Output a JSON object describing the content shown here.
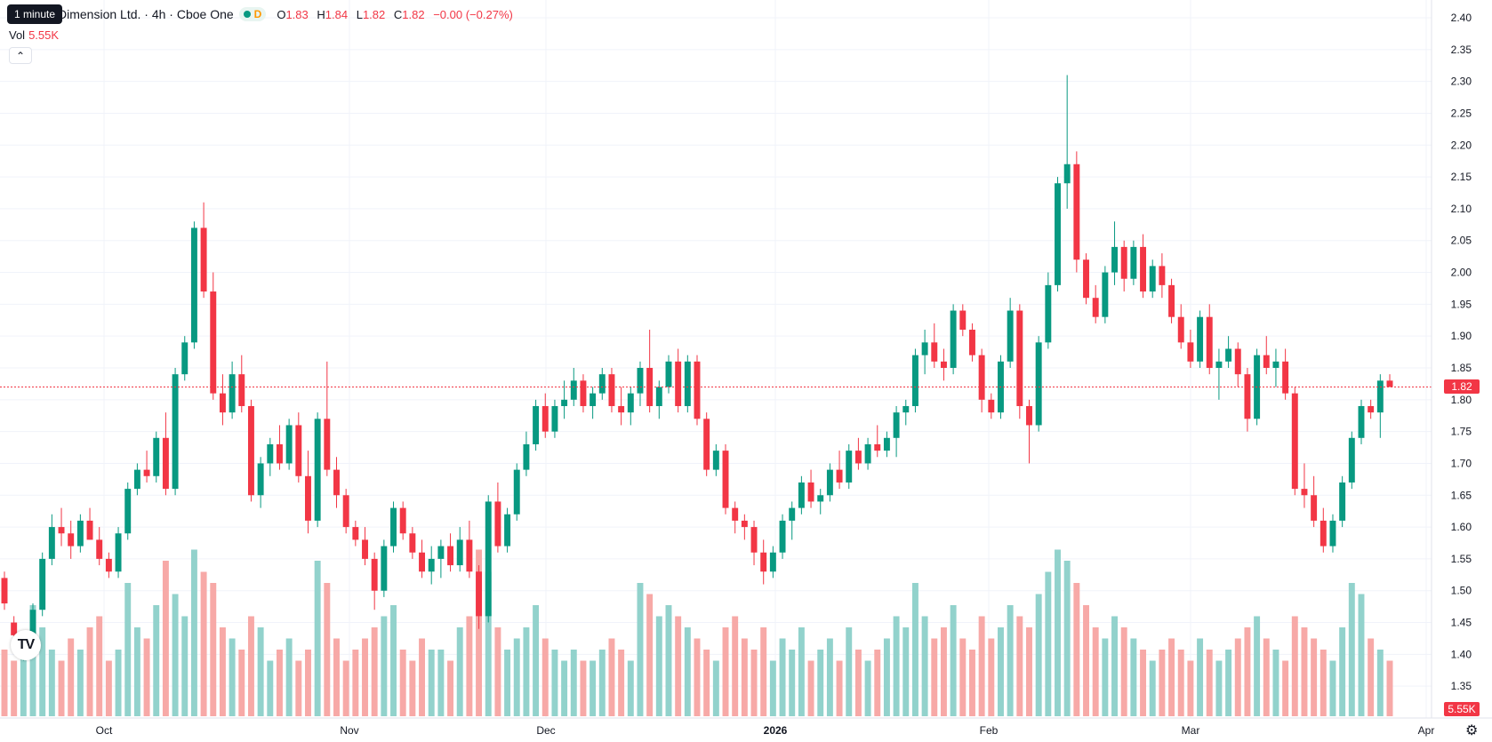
{
  "tooltip": "1 minute",
  "legend": {
    "title": "Dimension Ltd. · 4h · Cboe One",
    "delay_badge": "D",
    "o_label": "O",
    "o_value": "1.83",
    "h_label": "H",
    "h_value": "1.84",
    "l_label": "L",
    "l_value": "1.82",
    "c_label": "C",
    "c_value": "1.82",
    "change": "−0.00 (−0.27%)"
  },
  "volume": {
    "label": "Vol",
    "value": "5.55K"
  },
  "price_tag": "1.82",
  "volume_tag": "5.55K",
  "icons": {
    "collapse": "chevron-up-icon",
    "logo": "tradingview-logo",
    "settings": "gear-icon"
  },
  "colors": {
    "up": "#089981",
    "down": "#f23645",
    "up_volume": "#92d2cc",
    "down_volume": "#f7a9a7",
    "grid": "#f0f3fa"
  },
  "chart_data": {
    "type": "candlestick",
    "price_axis": {
      "min": 1.3,
      "max": 2.4,
      "ticks": [
        "2.40",
        "2.35",
        "2.30",
        "2.25",
        "2.20",
        "2.15",
        "2.10",
        "2.05",
        "2.00",
        "1.95",
        "1.90",
        "1.85",
        "1.80",
        "1.75",
        "1.70",
        "1.65",
        "1.60",
        "1.55",
        "1.50",
        "1.45",
        "1.40",
        "1.35"
      ]
    },
    "time_axis": {
      "labels": [
        "Oct",
        "Nov",
        "Dec",
        "2026",
        "Feb",
        "Mar",
        "Apr"
      ]
    },
    "last_price": 1.82,
    "grid": true,
    "candles": [
      [
        1.52,
        1.53,
        1.47,
        1.48,
        6
      ],
      [
        1.45,
        1.46,
        1.42,
        1.43,
        5
      ],
      [
        1.41,
        1.43,
        1.39,
        1.42,
        7
      ],
      [
        1.42,
        1.48,
        1.4,
        1.47,
        10
      ],
      [
        1.47,
        1.56,
        1.46,
        1.55,
        8
      ],
      [
        1.55,
        1.62,
        1.54,
        1.6,
        6
      ],
      [
        1.6,
        1.63,
        1.57,
        1.59,
        5
      ],
      [
        1.59,
        1.61,
        1.55,
        1.57,
        7
      ],
      [
        1.57,
        1.62,
        1.56,
        1.61,
        6
      ],
      [
        1.61,
        1.63,
        1.58,
        1.58,
        8
      ],
      [
        1.58,
        1.6,
        1.54,
        1.55,
        9
      ],
      [
        1.55,
        1.56,
        1.52,
        1.53,
        5
      ],
      [
        1.53,
        1.6,
        1.52,
        1.59,
        6
      ],
      [
        1.59,
        1.67,
        1.58,
        1.66,
        12
      ],
      [
        1.66,
        1.7,
        1.65,
        1.69,
        8
      ],
      [
        1.69,
        1.72,
        1.67,
        1.68,
        7
      ],
      [
        1.68,
        1.75,
        1.67,
        1.74,
        10
      ],
      [
        1.74,
        1.78,
        1.65,
        1.66,
        14
      ],
      [
        1.66,
        1.85,
        1.65,
        1.84,
        11
      ],
      [
        1.84,
        1.9,
        1.83,
        1.89,
        9
      ],
      [
        1.89,
        2.08,
        1.88,
        2.07,
        15
      ],
      [
        2.07,
        2.11,
        1.96,
        1.97,
        13
      ],
      [
        1.97,
        2.0,
        1.8,
        1.81,
        12
      ],
      [
        1.81,
        1.84,
        1.76,
        1.78,
        8
      ],
      [
        1.78,
        1.86,
        1.77,
        1.84,
        7
      ],
      [
        1.84,
        1.87,
        1.78,
        1.79,
        6
      ],
      [
        1.79,
        1.8,
        1.64,
        1.65,
        9
      ],
      [
        1.65,
        1.71,
        1.63,
        1.7,
        8
      ],
      [
        1.7,
        1.74,
        1.68,
        1.73,
        5
      ],
      [
        1.73,
        1.76,
        1.69,
        1.7,
        6
      ],
      [
        1.7,
        1.77,
        1.69,
        1.76,
        7
      ],
      [
        1.76,
        1.78,
        1.67,
        1.68,
        5
      ],
      [
        1.68,
        1.72,
        1.59,
        1.61,
        6
      ],
      [
        1.61,
        1.78,
        1.6,
        1.77,
        14
      ],
      [
        1.77,
        1.86,
        1.68,
        1.69,
        12
      ],
      [
        1.69,
        1.71,
        1.63,
        1.65,
        7
      ],
      [
        1.65,
        1.66,
        1.59,
        1.6,
        5
      ],
      [
        1.6,
        1.61,
        1.57,
        1.58,
        6
      ],
      [
        1.58,
        1.6,
        1.54,
        1.55,
        7
      ],
      [
        1.55,
        1.56,
        1.47,
        1.5,
        8
      ],
      [
        1.5,
        1.58,
        1.49,
        1.57,
        9
      ],
      [
        1.57,
        1.64,
        1.56,
        1.63,
        10
      ],
      [
        1.63,
        1.64,
        1.58,
        1.59,
        6
      ],
      [
        1.59,
        1.6,
        1.55,
        1.56,
        5
      ],
      [
        1.56,
        1.58,
        1.52,
        1.53,
        7
      ],
      [
        1.53,
        1.57,
        1.51,
        1.55,
        6
      ],
      [
        1.55,
        1.58,
        1.52,
        1.57,
        6
      ],
      [
        1.57,
        1.59,
        1.53,
        1.54,
        5
      ],
      [
        1.54,
        1.6,
        1.53,
        1.58,
        8
      ],
      [
        1.58,
        1.61,
        1.52,
        1.53,
        9
      ],
      [
        1.53,
        1.54,
        1.44,
        1.46,
        15
      ],
      [
        1.46,
        1.65,
        1.45,
        1.64,
        13
      ],
      [
        1.64,
        1.67,
        1.56,
        1.57,
        8
      ],
      [
        1.57,
        1.63,
        1.56,
        1.62,
        6
      ],
      [
        1.62,
        1.7,
        1.61,
        1.69,
        7
      ],
      [
        1.69,
        1.75,
        1.68,
        1.73,
        8
      ],
      [
        1.73,
        1.8,
        1.72,
        1.79,
        10
      ],
      [
        1.79,
        1.81,
        1.74,
        1.75,
        7
      ],
      [
        1.75,
        1.8,
        1.74,
        1.79,
        6
      ],
      [
        1.79,
        1.83,
        1.77,
        1.8,
        5
      ],
      [
        1.8,
        1.85,
        1.79,
        1.83,
        6
      ],
      [
        1.83,
        1.84,
        1.78,
        1.79,
        5
      ],
      [
        1.79,
        1.82,
        1.77,
        1.81,
        5
      ],
      [
        1.81,
        1.85,
        1.8,
        1.84,
        6
      ],
      [
        1.84,
        1.85,
        1.78,
        1.79,
        7
      ],
      [
        1.79,
        1.82,
        1.76,
        1.78,
        6
      ],
      [
        1.78,
        1.82,
        1.76,
        1.81,
        5
      ],
      [
        1.81,
        1.86,
        1.79,
        1.85,
        12
      ],
      [
        1.85,
        1.91,
        1.78,
        1.79,
        11
      ],
      [
        1.79,
        1.83,
        1.77,
        1.82,
        9
      ],
      [
        1.82,
        1.87,
        1.81,
        1.86,
        10
      ],
      [
        1.86,
        1.88,
        1.78,
        1.79,
        9
      ],
      [
        1.79,
        1.87,
        1.78,
        1.86,
        8
      ],
      [
        1.86,
        1.87,
        1.76,
        1.77,
        7
      ],
      [
        1.77,
        1.78,
        1.68,
        1.69,
        6
      ],
      [
        1.69,
        1.73,
        1.68,
        1.72,
        5
      ],
      [
        1.72,
        1.73,
        1.62,
        1.63,
        8
      ],
      [
        1.63,
        1.64,
        1.59,
        1.61,
        9
      ],
      [
        1.61,
        1.62,
        1.58,
        1.6,
        7
      ],
      [
        1.6,
        1.61,
        1.54,
        1.56,
        6
      ],
      [
        1.56,
        1.58,
        1.51,
        1.53,
        8
      ],
      [
        1.53,
        1.57,
        1.52,
        1.56,
        5
      ],
      [
        1.56,
        1.62,
        1.55,
        1.61,
        7
      ],
      [
        1.61,
        1.64,
        1.58,
        1.63,
        6
      ],
      [
        1.63,
        1.68,
        1.62,
        1.67,
        8
      ],
      [
        1.67,
        1.69,
        1.63,
        1.64,
        5
      ],
      [
        1.64,
        1.66,
        1.62,
        1.65,
        6
      ],
      [
        1.65,
        1.7,
        1.64,
        1.69,
        7
      ],
      [
        1.69,
        1.72,
        1.66,
        1.67,
        5
      ],
      [
        1.67,
        1.73,
        1.66,
        1.72,
        8
      ],
      [
        1.72,
        1.74,
        1.69,
        1.7,
        6
      ],
      [
        1.7,
        1.74,
        1.69,
        1.73,
        5
      ],
      [
        1.73,
        1.76,
        1.71,
        1.72,
        6
      ],
      [
        1.72,
        1.75,
        1.71,
        1.74,
        7
      ],
      [
        1.74,
        1.79,
        1.71,
        1.78,
        9
      ],
      [
        1.78,
        1.8,
        1.76,
        1.79,
        8
      ],
      [
        1.79,
        1.88,
        1.78,
        1.87,
        12
      ],
      [
        1.87,
        1.91,
        1.84,
        1.89,
        9
      ],
      [
        1.89,
        1.92,
        1.85,
        1.86,
        7
      ],
      [
        1.86,
        1.88,
        1.83,
        1.85,
        8
      ],
      [
        1.85,
        1.95,
        1.84,
        1.94,
        10
      ],
      [
        1.94,
        1.95,
        1.9,
        1.91,
        7
      ],
      [
        1.91,
        1.92,
        1.86,
        1.87,
        6
      ],
      [
        1.87,
        1.88,
        1.78,
        1.8,
        9
      ],
      [
        1.8,
        1.81,
        1.77,
        1.78,
        7
      ],
      [
        1.78,
        1.87,
        1.77,
        1.86,
        8
      ],
      [
        1.86,
        1.96,
        1.85,
        1.94,
        10
      ],
      [
        1.94,
        1.95,
        1.77,
        1.79,
        9
      ],
      [
        1.79,
        1.8,
        1.7,
        1.76,
        8
      ],
      [
        1.76,
        1.9,
        1.75,
        1.89,
        11
      ],
      [
        1.89,
        2.0,
        1.88,
        1.98,
        13
      ],
      [
        1.98,
        2.15,
        1.97,
        2.14,
        15
      ],
      [
        2.14,
        2.31,
        2.1,
        2.17,
        14
      ],
      [
        2.17,
        2.19,
        2.0,
        2.02,
        12
      ],
      [
        2.02,
        2.03,
        1.95,
        1.96,
        10
      ],
      [
        1.96,
        1.98,
        1.92,
        1.93,
        8
      ],
      [
        1.93,
        2.01,
        1.92,
        2.0,
        7
      ],
      [
        2.0,
        2.08,
        1.98,
        2.04,
        9
      ],
      [
        2.04,
        2.05,
        1.97,
        1.99,
        8
      ],
      [
        1.99,
        2.05,
        1.98,
        2.04,
        7
      ],
      [
        2.04,
        2.06,
        1.96,
        1.97,
        6
      ],
      [
        1.97,
        2.02,
        1.96,
        2.01,
        5
      ],
      [
        2.01,
        2.03,
        1.96,
        1.98,
        6
      ],
      [
        1.98,
        1.99,
        1.92,
        1.93,
        7
      ],
      [
        1.93,
        1.95,
        1.88,
        1.89,
        6
      ],
      [
        1.89,
        1.91,
        1.85,
        1.86,
        5
      ],
      [
        1.86,
        1.94,
        1.85,
        1.93,
        7
      ],
      [
        1.93,
        1.95,
        1.84,
        1.85,
        6
      ],
      [
        1.85,
        1.88,
        1.8,
        1.86,
        5
      ],
      [
        1.86,
        1.9,
        1.85,
        1.88,
        6
      ],
      [
        1.88,
        1.89,
        1.82,
        1.84,
        7
      ],
      [
        1.84,
        1.85,
        1.75,
        1.77,
        8
      ],
      [
        1.77,
        1.88,
        1.76,
        1.87,
        9
      ],
      [
        1.87,
        1.9,
        1.84,
        1.85,
        7
      ],
      [
        1.85,
        1.88,
        1.82,
        1.86,
        6
      ],
      [
        1.86,
        1.88,
        1.8,
        1.81,
        5
      ],
      [
        1.81,
        1.82,
        1.65,
        1.66,
        9
      ],
      [
        1.66,
        1.7,
        1.63,
        1.65,
        8
      ],
      [
        1.65,
        1.68,
        1.6,
        1.61,
        7
      ],
      [
        1.61,
        1.63,
        1.56,
        1.57,
        6
      ],
      [
        1.57,
        1.62,
        1.56,
        1.61,
        5
      ],
      [
        1.61,
        1.68,
        1.6,
        1.67,
        8
      ],
      [
        1.67,
        1.75,
        1.66,
        1.74,
        12
      ],
      [
        1.74,
        1.8,
        1.73,
        1.79,
        11
      ],
      [
        1.79,
        1.8,
        1.77,
        1.78,
        7
      ],
      [
        1.78,
        1.84,
        1.74,
        1.83,
        6
      ],
      [
        1.83,
        1.84,
        1.82,
        1.82,
        5
      ]
    ]
  }
}
